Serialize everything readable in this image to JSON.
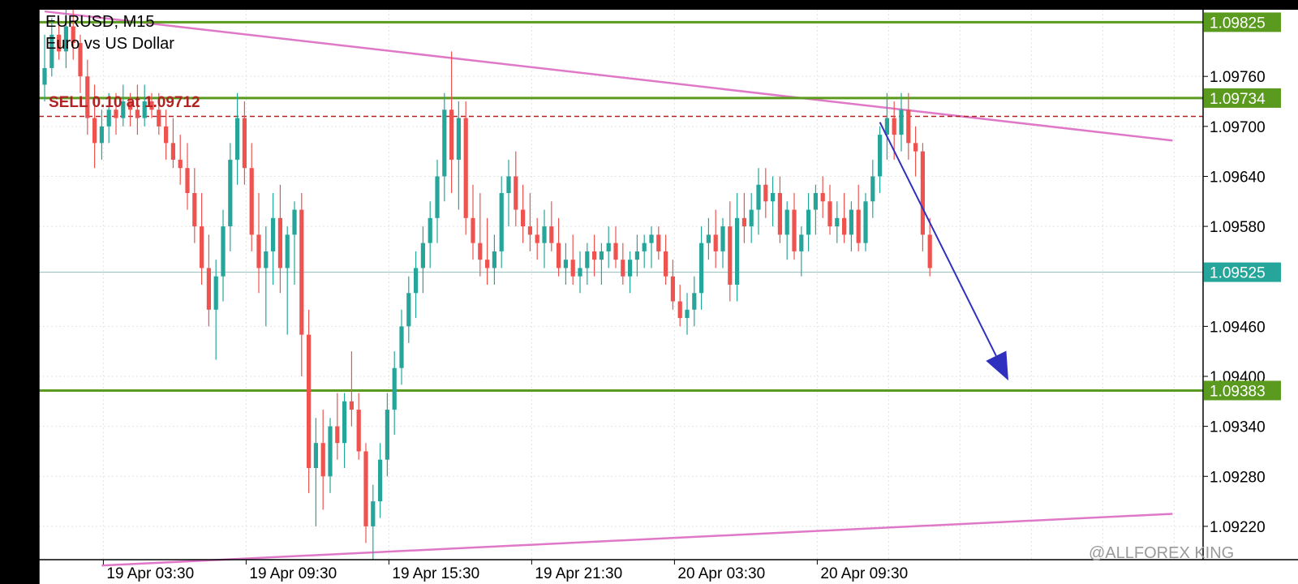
{
  "chart_data": {
    "type": "candlestick",
    "symbol": "EURUSD, M15",
    "description": "Euro vs US Dollar",
    "ylim": [
      1.0918,
      1.0984
    ],
    "y_ticks": [
      "1.09760",
      "1.09700",
      "1.09640",
      "1.09580",
      "1.09460",
      "1.09400",
      "1.09340",
      "1.09280",
      "1.09220"
    ],
    "x_ticks": [
      "19 Apr 03:30",
      "19 Apr 09:30",
      "19 Apr 15:30",
      "19 Apr 21:30",
      "20 Apr 03:30",
      "20 Apr 09:30"
    ],
    "current_price": "1.09525",
    "horizontal_levels": [
      {
        "price": 1.09825,
        "label": "1.09825",
        "color": "#5a9a1e"
      },
      {
        "price": 1.09734,
        "label": "1.09734",
        "color": "#5a9a1e"
      },
      {
        "price": 1.09383,
        "label": "1.09383",
        "color": "#5a9a1e"
      }
    ],
    "order": {
      "label": "SELL 0.10 at 1.09712",
      "price": 1.09712,
      "color": "#b22222"
    },
    "trendlines": [
      {
        "from": {
          "bar": 0,
          "price": 1.09838
        },
        "to": {
          "bar": 158,
          "price": 1.09683
        },
        "color": "#e078c8"
      },
      {
        "from": {
          "bar": 8,
          "price": 1.09173
        },
        "to": {
          "bar": 158,
          "price": 1.09235
        },
        "color": "#e078c8"
      }
    ],
    "arrow": {
      "from": {
        "bar": 117,
        "price": 1.09705
      },
      "to": {
        "bar": 135,
        "price": 1.09395
      },
      "color": "#3030c0"
    },
    "colors": {
      "up": "#26a69a",
      "down": "#ef5350",
      "level_tag": "#5a9a1e",
      "price_tag": "#26a69a"
    },
    "grid": true,
    "bars": [
      {
        "o": 1.0975,
        "h": 1.0981,
        "l": 1.0973,
        "c": 1.0977
      },
      {
        "o": 1.0977,
        "h": 1.0983,
        "l": 1.0976,
        "c": 1.0981
      },
      {
        "o": 1.0981,
        "h": 1.0983,
        "l": 1.0978,
        "c": 1.0979
      },
      {
        "o": 1.0979,
        "h": 1.0984,
        "l": 1.0977,
        "c": 1.0982
      },
      {
        "o": 1.0982,
        "h": 1.0984,
        "l": 1.0978,
        "c": 1.098
      },
      {
        "o": 1.098,
        "h": 1.0981,
        "l": 1.0974,
        "c": 1.0976
      },
      {
        "o": 1.0976,
        "h": 1.0978,
        "l": 1.0969,
        "c": 1.0971
      },
      {
        "o": 1.0971,
        "h": 1.0975,
        "l": 1.0965,
        "c": 1.0968
      },
      {
        "o": 1.0968,
        "h": 1.0972,
        "l": 1.0966,
        "c": 1.097
      },
      {
        "o": 1.097,
        "h": 1.0974,
        "l": 1.0968,
        "c": 1.0972
      },
      {
        "o": 1.0972,
        "h": 1.0974,
        "l": 1.0969,
        "c": 1.0971
      },
      {
        "o": 1.0971,
        "h": 1.0975,
        "l": 1.097,
        "c": 1.0973
      },
      {
        "o": 1.0973,
        "h": 1.0974,
        "l": 1.097,
        "c": 1.0972
      },
      {
        "o": 1.0972,
        "h": 1.0975,
        "l": 1.0969,
        "c": 1.0971
      },
      {
        "o": 1.0971,
        "h": 1.0975,
        "l": 1.097,
        "c": 1.0973
      },
      {
        "o": 1.0973,
        "h": 1.0974,
        "l": 1.0971,
        "c": 1.0972
      },
      {
        "o": 1.0972,
        "h": 1.0974,
        "l": 1.0969,
        "c": 1.097
      },
      {
        "o": 1.097,
        "h": 1.0972,
        "l": 1.0966,
        "c": 1.0968
      },
      {
        "o": 1.0968,
        "h": 1.0971,
        "l": 1.0965,
        "c": 1.0966
      },
      {
        "o": 1.0966,
        "h": 1.0969,
        "l": 1.0963,
        "c": 1.0965
      },
      {
        "o": 1.0965,
        "h": 1.0968,
        "l": 1.096,
        "c": 1.0962
      },
      {
        "o": 1.0962,
        "h": 1.0965,
        "l": 1.0956,
        "c": 1.0958
      },
      {
        "o": 1.0958,
        "h": 1.0962,
        "l": 1.0951,
        "c": 1.0953
      },
      {
        "o": 1.0953,
        "h": 1.0957,
        "l": 1.0946,
        "c": 1.0948
      },
      {
        "o": 1.0948,
        "h": 1.0954,
        "l": 1.0942,
        "c": 1.0952
      },
      {
        "o": 1.0952,
        "h": 1.096,
        "l": 1.0949,
        "c": 1.0958
      },
      {
        "o": 1.0958,
        "h": 1.0968,
        "l": 1.0955,
        "c": 1.0966
      },
      {
        "o": 1.0966,
        "h": 1.0974,
        "l": 1.0963,
        "c": 1.0971
      },
      {
        "o": 1.0971,
        "h": 1.0973,
        "l": 1.0963,
        "c": 1.0965
      },
      {
        "o": 1.0965,
        "h": 1.0968,
        "l": 1.0955,
        "c": 1.0957
      },
      {
        "o": 1.0957,
        "h": 1.0962,
        "l": 1.095,
        "c": 1.0953
      },
      {
        "o": 1.0953,
        "h": 1.0958,
        "l": 1.0946,
        "c": 1.0955
      },
      {
        "o": 1.0955,
        "h": 1.0962,
        "l": 1.0951,
        "c": 1.0959
      },
      {
        "o": 1.0959,
        "h": 1.0963,
        "l": 1.095,
        "c": 1.0953
      },
      {
        "o": 1.0953,
        "h": 1.0958,
        "l": 1.0945,
        "c": 1.0957
      },
      {
        "o": 1.0957,
        "h": 1.0961,
        "l": 1.0951,
        "c": 1.096
      },
      {
        "o": 1.096,
        "h": 1.0962,
        "l": 1.094,
        "c": 1.0945
      },
      {
        "o": 1.0945,
        "h": 1.0948,
        "l": 1.0926,
        "c": 1.0929
      },
      {
        "o": 1.0929,
        "h": 1.0935,
        "l": 1.0922,
        "c": 1.0932
      },
      {
        "o": 1.0932,
        "h": 1.0936,
        "l": 1.0924,
        "c": 1.0928
      },
      {
        "o": 1.0928,
        "h": 1.0935,
        "l": 1.0926,
        "c": 1.0934
      },
      {
        "o": 1.0934,
        "h": 1.0938,
        "l": 1.093,
        "c": 1.0932
      },
      {
        "o": 1.0932,
        "h": 1.0938,
        "l": 1.0929,
        "c": 1.0937
      },
      {
        "o": 1.0937,
        "h": 1.0943,
        "l": 1.0934,
        "c": 1.0936
      },
      {
        "o": 1.0936,
        "h": 1.0938,
        "l": 1.093,
        "c": 1.0931
      },
      {
        "o": 1.0931,
        "h": 1.0932,
        "l": 1.092,
        "c": 1.0922
      },
      {
        "o": 1.0922,
        "h": 1.0927,
        "l": 1.0918,
        "c": 1.0925
      },
      {
        "o": 1.0925,
        "h": 1.0932,
        "l": 1.0923,
        "c": 1.093
      },
      {
        "o": 1.093,
        "h": 1.0938,
        "l": 1.0928,
        "c": 1.0936
      },
      {
        "o": 1.0936,
        "h": 1.0943,
        "l": 1.0933,
        "c": 1.0941
      },
      {
        "o": 1.0941,
        "h": 1.0948,
        "l": 1.0939,
        "c": 1.0946
      },
      {
        "o": 1.0946,
        "h": 1.0952,
        "l": 1.0944,
        "c": 1.095
      },
      {
        "o": 1.095,
        "h": 1.0955,
        "l": 1.0947,
        "c": 1.0953
      },
      {
        "o": 1.0953,
        "h": 1.0958,
        "l": 1.095,
        "c": 1.0956
      },
      {
        "o": 1.0956,
        "h": 1.0961,
        "l": 1.0953,
        "c": 1.0959
      },
      {
        "o": 1.0959,
        "h": 1.0966,
        "l": 1.0956,
        "c": 1.0964
      },
      {
        "o": 1.0964,
        "h": 1.0974,
        "l": 1.0961,
        "c": 1.0972
      },
      {
        "o": 1.0972,
        "h": 1.0979,
        "l": 1.0962,
        "c": 1.0966
      },
      {
        "o": 1.0966,
        "h": 1.0973,
        "l": 1.096,
        "c": 1.0971
      },
      {
        "o": 1.0971,
        "h": 1.0973,
        "l": 1.0957,
        "c": 1.0959
      },
      {
        "o": 1.0959,
        "h": 1.0963,
        "l": 1.0954,
        "c": 1.0956
      },
      {
        "o": 1.0956,
        "h": 1.0962,
        "l": 1.0952,
        "c": 1.0954
      },
      {
        "o": 1.0954,
        "h": 1.0959,
        "l": 1.0951,
        "c": 1.0953
      },
      {
        "o": 1.0953,
        "h": 1.0957,
        "l": 1.0951,
        "c": 1.0955
      },
      {
        "o": 1.0955,
        "h": 1.0964,
        "l": 1.0953,
        "c": 1.0962
      },
      {
        "o": 1.0962,
        "h": 1.0966,
        "l": 1.0958,
        "c": 1.0964
      },
      {
        "o": 1.0964,
        "h": 1.0967,
        "l": 1.0958,
        "c": 1.096
      },
      {
        "o": 1.096,
        "h": 1.0963,
        "l": 1.0956,
        "c": 1.0958
      },
      {
        "o": 1.0958,
        "h": 1.0962,
        "l": 1.0955,
        "c": 1.0957
      },
      {
        "o": 1.0957,
        "h": 1.0959,
        "l": 1.0954,
        "c": 1.0956
      },
      {
        "o": 1.0956,
        "h": 1.096,
        "l": 1.0953,
        "c": 1.0958
      },
      {
        "o": 1.0958,
        "h": 1.0961,
        "l": 1.0955,
        "c": 1.0956
      },
      {
        "o": 1.0956,
        "h": 1.0959,
        "l": 1.0952,
        "c": 1.0953
      },
      {
        "o": 1.0953,
        "h": 1.0956,
        "l": 1.0951,
        "c": 1.0954
      },
      {
        "o": 1.0954,
        "h": 1.0957,
        "l": 1.0951,
        "c": 1.0952
      },
      {
        "o": 1.0952,
        "h": 1.0955,
        "l": 1.095,
        "c": 1.0953
      },
      {
        "o": 1.0953,
        "h": 1.0956,
        "l": 1.0951,
        "c": 1.0955
      },
      {
        "o": 1.0955,
        "h": 1.0957,
        "l": 1.0952,
        "c": 1.0954
      },
      {
        "o": 1.0954,
        "h": 1.0956,
        "l": 1.0951,
        "c": 1.0955
      },
      {
        "o": 1.0955,
        "h": 1.0958,
        "l": 1.0953,
        "c": 1.0956
      },
      {
        "o": 1.0956,
        "h": 1.0958,
        "l": 1.0953,
        "c": 1.0954
      },
      {
        "o": 1.0954,
        "h": 1.0956,
        "l": 1.0951,
        "c": 1.0952
      },
      {
        "o": 1.0952,
        "h": 1.0955,
        "l": 1.095,
        "c": 1.0954
      },
      {
        "o": 1.0954,
        "h": 1.0957,
        "l": 1.0952,
        "c": 1.0955
      },
      {
        "o": 1.0955,
        "h": 1.0957,
        "l": 1.0953,
        "c": 1.0956
      },
      {
        "o": 1.0956,
        "h": 1.0958,
        "l": 1.0953,
        "c": 1.0957
      },
      {
        "o": 1.0957,
        "h": 1.0958,
        "l": 1.0954,
        "c": 1.0955
      },
      {
        "o": 1.0955,
        "h": 1.0957,
        "l": 1.0951,
        "c": 1.0952
      },
      {
        "o": 1.0952,
        "h": 1.0954,
        "l": 1.0948,
        "c": 1.0949
      },
      {
        "o": 1.0949,
        "h": 1.0951,
        "l": 1.0946,
        "c": 1.0947
      },
      {
        "o": 1.0947,
        "h": 1.095,
        "l": 1.0945,
        "c": 1.0948
      },
      {
        "o": 1.0948,
        "h": 1.0952,
        "l": 1.0946,
        "c": 1.095
      },
      {
        "o": 1.095,
        "h": 1.0958,
        "l": 1.0948,
        "c": 1.0956
      },
      {
        "o": 1.0956,
        "h": 1.0959,
        "l": 1.0954,
        "c": 1.0957
      },
      {
        "o": 1.0957,
        "h": 1.096,
        "l": 1.0953,
        "c": 1.0955
      },
      {
        "o": 1.0955,
        "h": 1.0959,
        "l": 1.0953,
        "c": 1.0958
      },
      {
        "o": 1.0958,
        "h": 1.0961,
        "l": 1.0949,
        "c": 1.0951
      },
      {
        "o": 1.0951,
        "h": 1.0962,
        "l": 1.0949,
        "c": 1.0959
      },
      {
        "o": 1.0959,
        "h": 1.0962,
        "l": 1.0956,
        "c": 1.0958
      },
      {
        "o": 1.0958,
        "h": 1.0962,
        "l": 1.0956,
        "c": 1.096
      },
      {
        "o": 1.096,
        "h": 1.0965,
        "l": 1.0957,
        "c": 1.0963
      },
      {
        "o": 1.0963,
        "h": 1.0965,
        "l": 1.0959,
        "c": 1.0961
      },
      {
        "o": 1.0961,
        "h": 1.0964,
        "l": 1.0958,
        "c": 1.0962
      },
      {
        "o": 1.0962,
        "h": 1.0964,
        "l": 1.0956,
        "c": 1.0957
      },
      {
        "o": 1.0957,
        "h": 1.0961,
        "l": 1.0954,
        "c": 1.096
      },
      {
        "o": 1.096,
        "h": 1.0962,
        "l": 1.0954,
        "c": 1.0955
      },
      {
        "o": 1.0955,
        "h": 1.0958,
        "l": 1.0952,
        "c": 1.0957
      },
      {
        "o": 1.0957,
        "h": 1.0962,
        "l": 1.0955,
        "c": 1.096
      },
      {
        "o": 1.096,
        "h": 1.0963,
        "l": 1.0957,
        "c": 1.0962
      },
      {
        "o": 1.0962,
        "h": 1.0964,
        "l": 1.0959,
        "c": 1.0961
      },
      {
        "o": 1.0961,
        "h": 1.0963,
        "l": 1.0957,
        "c": 1.0958
      },
      {
        "o": 1.0958,
        "h": 1.0961,
        "l": 1.0956,
        "c": 1.0959
      },
      {
        "o": 1.0959,
        "h": 1.0962,
        "l": 1.0956,
        "c": 1.0957
      },
      {
        "o": 1.0957,
        "h": 1.0961,
        "l": 1.0955,
        "c": 1.096
      },
      {
        "o": 1.096,
        "h": 1.0963,
        "l": 1.0955,
        "c": 1.0956
      },
      {
        "o": 1.0956,
        "h": 1.0962,
        "l": 1.0955,
        "c": 1.0961
      },
      {
        "o": 1.0961,
        "h": 1.0966,
        "l": 1.0959,
        "c": 1.0964
      },
      {
        "o": 1.0964,
        "h": 1.097,
        "l": 1.0962,
        "c": 1.0969
      },
      {
        "o": 1.0969,
        "h": 1.0974,
        "l": 1.0966,
        "c": 1.0971
      },
      {
        "o": 1.0971,
        "h": 1.0973,
        "l": 1.0966,
        "c": 1.0969
      },
      {
        "o": 1.0969,
        "h": 1.0974,
        "l": 1.0967,
        "c": 1.0972
      },
      {
        "o": 1.0972,
        "h": 1.0974,
        "l": 1.0966,
        "c": 1.0968
      },
      {
        "o": 1.0968,
        "h": 1.097,
        "l": 1.0964,
        "c": 1.0967
      },
      {
        "o": 1.0967,
        "h": 1.0968,
        "l": 1.0955,
        "c": 1.0957
      },
      {
        "o": 1.0957,
        "h": 1.0959,
        "l": 1.0952,
        "c": 1.0953
      }
    ]
  },
  "watermark": "@ALLFOREX KING"
}
